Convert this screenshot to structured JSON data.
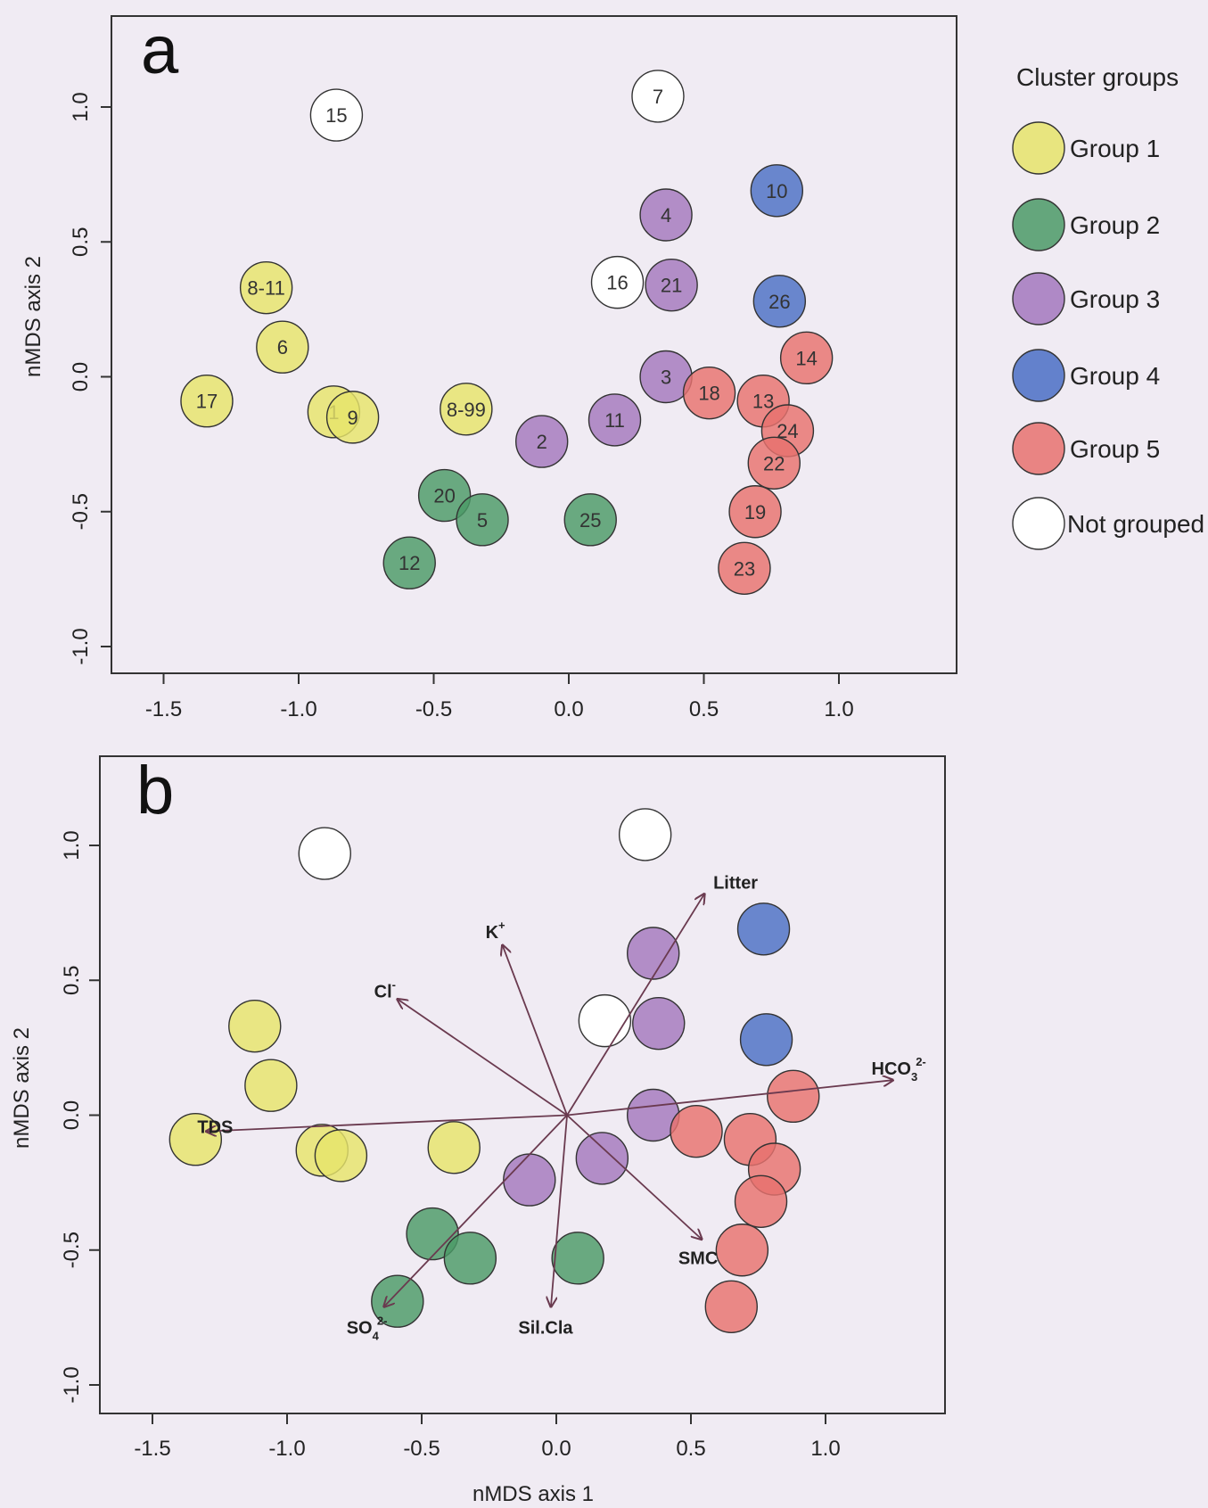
{
  "colors": {
    "Group 1": "#e6e46a",
    "Group 2": "#4b9a66",
    "Group 3": "#a378bd",
    "Group 4": "#4a6fc4",
    "Group 5": "#e8726e",
    "Not grouped": "#ffffff",
    "outline": "#333333",
    "vector": "#6a3a4f"
  },
  "legend": {
    "title": "Cluster groups",
    "items": [
      "Group 1",
      "Group 2",
      "Group 3",
      "Group 4",
      "Group 5",
      "Not grouped"
    ]
  },
  "chart_data": [
    {
      "type": "scatter",
      "panel": "a",
      "xlabel": "",
      "ylabel": "nMDS axis 2",
      "xlim": [
        -1.72,
        1.42
      ],
      "ylim": [
        -1.1,
        1.32
      ],
      "xticks": [
        -1.5,
        -1.0,
        -0.5,
        0.0,
        0.5,
        1.0
      ],
      "xtick_labels": [
        "-1.5",
        "-1.0",
        "-0.5",
        "0.0",
        "0.5",
        "1.0"
      ],
      "yticks": [
        -1.0,
        -0.5,
        0.0,
        0.5,
        1.0
      ],
      "ytick_labels": [
        "-1.0",
        "-0.5",
        "0.0",
        "0.5",
        "1.0"
      ],
      "points": [
        {
          "label": "15",
          "group": "Not grouped",
          "x": -0.86,
          "y": 0.97
        },
        {
          "label": "7",
          "group": "Not grouped",
          "x": 0.33,
          "y": 1.04
        },
        {
          "label": "10",
          "group": "Group 4",
          "x": 0.77,
          "y": 0.69
        },
        {
          "label": "4",
          "group": "Group 3",
          "x": 0.36,
          "y": 0.6
        },
        {
          "label": "16",
          "group": "Not grouped",
          "x": 0.18,
          "y": 0.35
        },
        {
          "label": "21",
          "group": "Group 3",
          "x": 0.38,
          "y": 0.34
        },
        {
          "label": "26",
          "group": "Group 4",
          "x": 0.78,
          "y": 0.28
        },
        {
          "label": "8-11",
          "group": "Group 1",
          "x": -1.12,
          "y": 0.33
        },
        {
          "label": "6",
          "group": "Group 1",
          "x": -1.06,
          "y": 0.11
        },
        {
          "label": "14",
          "group": "Group 5",
          "x": 0.88,
          "y": 0.07
        },
        {
          "label": "3",
          "group": "Group 3",
          "x": 0.36,
          "y": 0.0
        },
        {
          "label": "18",
          "group": "Group 5",
          "x": 0.52,
          "y": -0.06
        },
        {
          "label": "13",
          "group": "Group 5",
          "x": 0.72,
          "y": -0.09
        },
        {
          "label": "17",
          "group": "Group 1",
          "x": -1.34,
          "y": -0.09
        },
        {
          "label": "1",
          "group": "Group 1",
          "x": -0.87,
          "y": -0.13
        },
        {
          "label": "9",
          "group": "Group 1",
          "x": -0.8,
          "y": -0.15
        },
        {
          "label": "8-99",
          "group": "Group 1",
          "x": -0.38,
          "y": -0.12
        },
        {
          "label": "11",
          "group": "Group 3",
          "x": 0.17,
          "y": -0.16
        },
        {
          "label": "24",
          "group": "Group 5",
          "x": 0.81,
          "y": -0.2
        },
        {
          "label": "2",
          "group": "Group 3",
          "x": -0.1,
          "y": -0.24
        },
        {
          "label": "22",
          "group": "Group 5",
          "x": 0.76,
          "y": -0.32
        },
        {
          "label": "20",
          "group": "Group 2",
          "x": -0.46,
          "y": -0.44
        },
        {
          "label": "5",
          "group": "Group 2",
          "x": -0.32,
          "y": -0.53
        },
        {
          "label": "25",
          "group": "Group 2",
          "x": 0.08,
          "y": -0.53
        },
        {
          "label": "19",
          "group": "Group 5",
          "x": 0.69,
          "y": -0.5
        },
        {
          "label": "12",
          "group": "Group 2",
          "x": -0.59,
          "y": -0.69
        },
        {
          "label": "23",
          "group": "Group 5",
          "x": 0.65,
          "y": -0.71
        }
      ]
    },
    {
      "type": "scatter",
      "panel": "b",
      "xlabel": "nMDS axis 1",
      "ylabel": "nMDS axis 2",
      "xlim": [
        -1.72,
        1.42
      ],
      "ylim": [
        -1.1,
        1.32
      ],
      "xticks": [
        -1.5,
        -1.0,
        -0.5,
        0.0,
        0.5,
        1.0
      ],
      "xtick_labels": [
        "-1.5",
        "-1.0",
        "-0.5",
        "0.0",
        "0.5",
        "1.0"
      ],
      "yticks": [
        -1.0,
        -0.5,
        0.0,
        0.5,
        1.0
      ],
      "ytick_labels": [
        "-1.0",
        "-0.5",
        "0.0",
        "0.5",
        "1.0"
      ],
      "vector_origin": [
        0.04,
        0.0
      ],
      "vectors": [
        {
          "label": "Litter",
          "x": 0.55,
          "y": 0.82
        },
        {
          "label": "K",
          "sup": "+",
          "sub": "",
          "x": -0.2,
          "y": 0.63
        },
        {
          "label": "Cl",
          "sup": "-",
          "sub": "",
          "x": -0.59,
          "y": 0.43
        },
        {
          "label": "HCO",
          "sup": "2-",
          "sub": "3",
          "x": 1.25,
          "y": 0.13
        },
        {
          "label": "TDS",
          "x": -1.3,
          "y": -0.06
        },
        {
          "label": "SMC",
          "x": 0.54,
          "y": -0.46
        },
        {
          "label": "Sil.Cla",
          "x": -0.02,
          "y": -0.71
        },
        {
          "label": "SO",
          "sup": "2-",
          "sub": "4",
          "x": -0.64,
          "y": -0.71
        }
      ]
    }
  ]
}
